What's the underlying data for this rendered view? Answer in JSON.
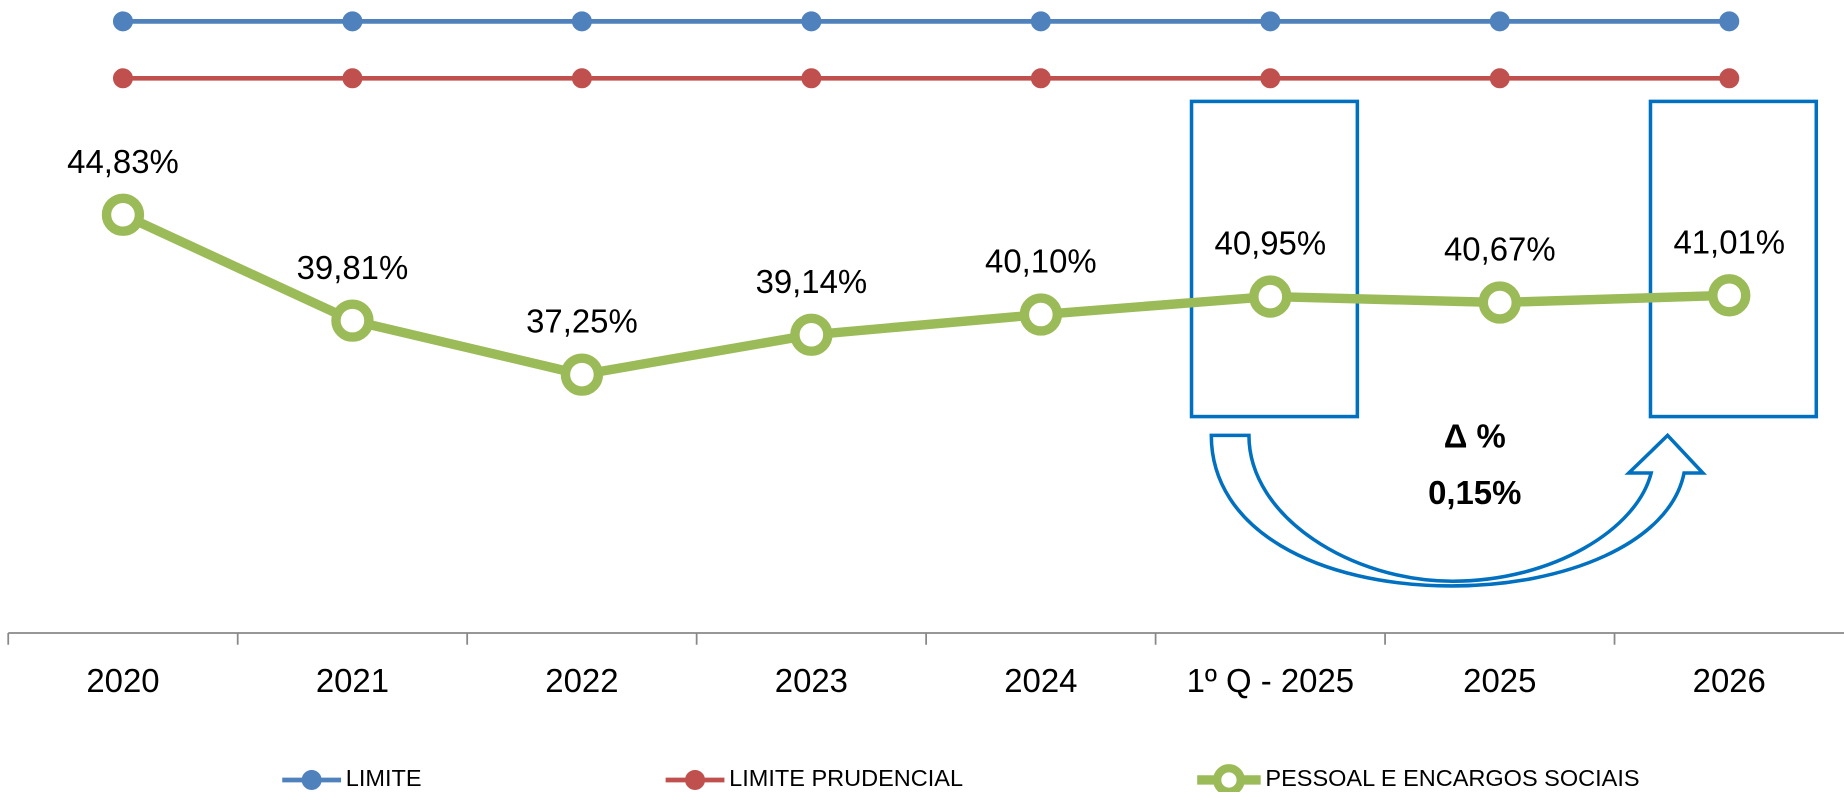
{
  "chart_data": {
    "type": "line",
    "categories": [
      "2020",
      "2021",
      "2022",
      "2023",
      "2024",
      "1º Q - 2025",
      "2025",
      "2026"
    ],
    "series": [
      {
        "name": "LIMITE",
        "color": "#4f81bd",
        "values": [
          54,
          54,
          54,
          54,
          54,
          54,
          54,
          54
        ]
      },
      {
        "name": "LIMITE PRUDENCIAL",
        "color": "#c0504d",
        "values": [
          51.3,
          51.3,
          51.3,
          51.3,
          51.3,
          51.3,
          51.3,
          51.3
        ]
      },
      {
        "name": "PESSOAL E ENCARGOS SOCIAIS",
        "color": "#9bbb59",
        "values": [
          44.83,
          39.81,
          37.25,
          39.14,
          40.1,
          40.95,
          40.67,
          41.01
        ],
        "value_labels": [
          "44,83%",
          "39,81%",
          "37,25%",
          "39,14%",
          "40,10%",
          "40,95%",
          "40,67%",
          "41,01%"
        ]
      }
    ],
    "ylim": [
      25,
      55
    ],
    "annotations": [
      "Δ %",
      "0,15%"
    ],
    "legend": "bottom"
  }
}
